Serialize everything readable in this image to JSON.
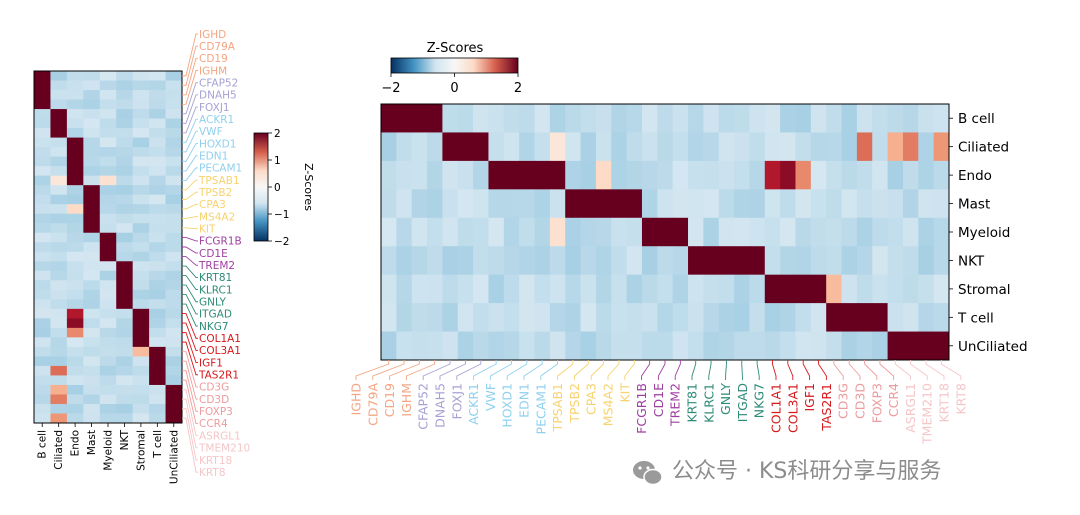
{
  "chart_data": [
    {
      "type": "heatmap",
      "orientation": "genes-as-rows",
      "cell_types": [
        "B cell",
        "Ciliated",
        "Endo",
        "Mast",
        "Myeloid",
        "NKT",
        "Stromal",
        "T cell",
        "UnCiliated"
      ],
      "colorbar": {
        "label": "Z-Scores",
        "ticks": [
          2,
          1,
          0,
          -1,
          -2
        ],
        "range": [
          -2,
          2
        ]
      }
    },
    {
      "type": "heatmap",
      "orientation": "genes-as-columns",
      "cell_types": [
        "B cell",
        "Ciliated",
        "Endo",
        "Mast",
        "Myeloid",
        "NKT",
        "Stromal",
        "T cell",
        "UnCiliated"
      ],
      "colorbar": {
        "label": "Z-Scores",
        "ticks": [
          -2,
          0,
          2
        ],
        "range": [
          -2,
          2
        ]
      }
    }
  ],
  "genes": [
    {
      "name": "IGHD",
      "group": "B cell",
      "color": "#f4a582"
    },
    {
      "name": "CD79A",
      "group": "B cell",
      "color": "#f4a582"
    },
    {
      "name": "CD19",
      "group": "B cell",
      "color": "#f4a582"
    },
    {
      "name": "IGHM",
      "group": "B cell",
      "color": "#f4a582"
    },
    {
      "name": "CFAP52",
      "group": "Ciliated",
      "color": "#a6a2d4"
    },
    {
      "name": "DNAH5",
      "group": "Ciliated",
      "color": "#a6a2d4"
    },
    {
      "name": "FOXJ1",
      "group": "Ciliated",
      "color": "#a6a2d4"
    },
    {
      "name": "ACKR1",
      "group": "Endo",
      "color": "#8fd0ee"
    },
    {
      "name": "VWF",
      "group": "Endo",
      "color": "#8fd0ee"
    },
    {
      "name": "HOXD1",
      "group": "Endo",
      "color": "#8fd0ee"
    },
    {
      "name": "EDN1",
      "group": "Endo",
      "color": "#8fd0ee"
    },
    {
      "name": "PECAM1",
      "group": "Endo",
      "color": "#8fd0ee"
    },
    {
      "name": "TPSAB1",
      "group": "Mast",
      "color": "#f7d26e"
    },
    {
      "name": "TPSB2",
      "group": "Mast",
      "color": "#f7d26e"
    },
    {
      "name": "CPA3",
      "group": "Mast",
      "color": "#f7d26e"
    },
    {
      "name": "MS4A2",
      "group": "Mast",
      "color": "#f7d26e"
    },
    {
      "name": "KIT",
      "group": "Mast",
      "color": "#f7d26e"
    },
    {
      "name": "FCGR1B",
      "group": "Myeloid",
      "color": "#9f3fa2"
    },
    {
      "name": "CD1E",
      "group": "Myeloid",
      "color": "#9f3fa2"
    },
    {
      "name": "TREM2",
      "group": "Myeloid",
      "color": "#9f3fa2"
    },
    {
      "name": "KRT81",
      "group": "NKT",
      "color": "#2e8b78"
    },
    {
      "name": "KLRC1",
      "group": "NKT",
      "color": "#2e8b78"
    },
    {
      "name": "GNLY",
      "group": "NKT",
      "color": "#2e8b78"
    },
    {
      "name": "ITGAD",
      "group": "NKT",
      "color": "#2e8b78"
    },
    {
      "name": "NKG7",
      "group": "NKT",
      "color": "#2e8b78"
    },
    {
      "name": "COL1A1",
      "group": "Stromal",
      "color": "#d7191c"
    },
    {
      "name": "COL3A1",
      "group": "Stromal",
      "color": "#d7191c"
    },
    {
      "name": "IGF1",
      "group": "Stromal",
      "color": "#d7191c"
    },
    {
      "name": "TAS2R1",
      "group": "Stromal",
      "color": "#d7191c"
    },
    {
      "name": "CD3G",
      "group": "T cell",
      "color": "#ee9b9d"
    },
    {
      "name": "CD3D",
      "group": "T cell",
      "color": "#ee9b9d"
    },
    {
      "name": "FOXP3",
      "group": "T cell",
      "color": "#ee9b9d"
    },
    {
      "name": "CCR4",
      "group": "T cell",
      "color": "#ee9b9d"
    },
    {
      "name": "ASRGL1",
      "group": "UnCiliated",
      "color": "#f5c6c8"
    },
    {
      "name": "TMEM210",
      "group": "UnCiliated",
      "color": "#f5c6c8"
    },
    {
      "name": "KRT18",
      "group": "UnCiliated",
      "color": "#f5c6c8"
    },
    {
      "name": "KRT8",
      "group": "UnCiliated",
      "color": "#f5c6c8"
    }
  ],
  "matrix_note": "Diagonal block (cell type x its marker genes) = 2; off-diagonal values near 0 with a few positive hotspots.",
  "hotspots": [
    {
      "cell": "Ciliated",
      "gene": "FOXP3",
      "value": 1.4
    },
    {
      "cell": "Ciliated",
      "gene": "ASRGL1",
      "value": 0.9
    },
    {
      "cell": "Ciliated",
      "gene": "TMEM210",
      "value": 1.3
    },
    {
      "cell": "Ciliated",
      "gene": "KRT8",
      "value": 1.1
    },
    {
      "cell": "Endo",
      "gene": "COL1A1",
      "value": 1.8
    },
    {
      "cell": "Endo",
      "gene": "COL3A1",
      "value": 1.9
    },
    {
      "cell": "Endo",
      "gene": "IGF1",
      "value": 1.2
    },
    {
      "cell": "Endo",
      "gene": "CPA3",
      "value": 0.5
    },
    {
      "cell": "Stromal",
      "gene": "CD3G",
      "value": 0.8
    },
    {
      "cell": "Myeloid",
      "gene": "PECAM1",
      "value": 0.4
    },
    {
      "cell": "Ciliated",
      "gene": "PECAM1",
      "value": 0.3
    }
  ],
  "watermark": "公众号 · KS科研分享与服务"
}
